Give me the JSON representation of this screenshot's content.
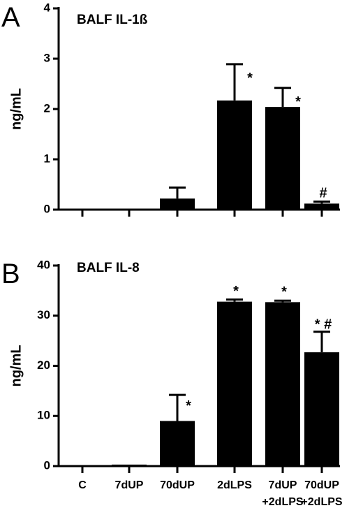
{
  "chart_data": [
    {
      "type": "bar",
      "panel_letter": "A",
      "title": "BALF IL-1ß",
      "ylabel": "ng/mL",
      "ylim": [
        0,
        4
      ],
      "yticks": [
        "0",
        "1",
        "2",
        "3",
        "4"
      ],
      "categories": [
        "C",
        "7dUP",
        "70dUP",
        "2dLPS",
        "7dUP +2dLPS",
        "70dUP +2dLPS"
      ],
      "show_category_labels": false,
      "values": [
        0,
        0,
        0.22,
        2.17,
        2.04,
        0.12
      ],
      "errors": [
        0,
        0,
        0.22,
        0.72,
        0.38,
        0.04
      ],
      "annotations": [
        "",
        "",
        "",
        "*",
        "*",
        "#"
      ]
    },
    {
      "type": "bar",
      "panel_letter": "B",
      "title": "BALF IL-8",
      "ylabel": "ng/mL",
      "ylim": [
        0,
        40
      ],
      "yticks": [
        "0",
        "10",
        "20",
        "30",
        "40"
      ],
      "categories": [
        [
          "C"
        ],
        [
          "7dUP"
        ],
        [
          "70dUP"
        ],
        [
          "2dLPS"
        ],
        [
          "7dUP",
          "+2dLPS"
        ],
        [
          "70dUP",
          "+2dLPS"
        ]
      ],
      "show_category_labels": true,
      "values": [
        0,
        0.3,
        9.0,
        32.8,
        32.7,
        22.7
      ],
      "errors": [
        0,
        0,
        5.2,
        0.4,
        0.3,
        4.1
      ],
      "annotations": [
        "",
        "",
        "*",
        "*",
        "*",
        "* #"
      ]
    }
  ]
}
